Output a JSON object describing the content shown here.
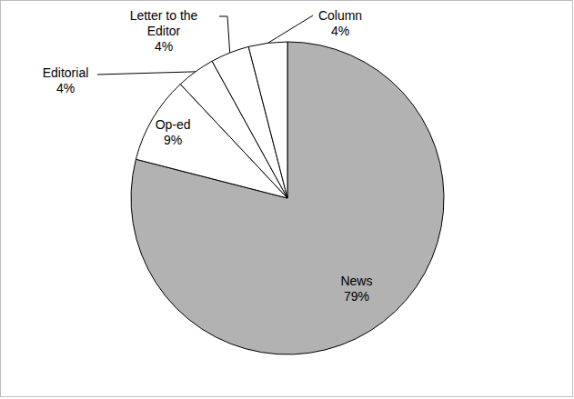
{
  "chart_data": {
    "type": "pie",
    "categories": [
      "News",
      "Op-ed",
      "Editorial",
      "Letter to the Editor",
      "Column"
    ],
    "values": [
      79,
      9,
      4,
      4,
      4
    ],
    "value_labels": [
      "79%",
      "9%",
      "4%",
      "4%",
      "4%"
    ],
    "colors": [
      "#b2b2b2",
      "#ffffff",
      "#ffffff",
      "#ffffff",
      "#ffffff"
    ],
    "data_labels": true
  }
}
